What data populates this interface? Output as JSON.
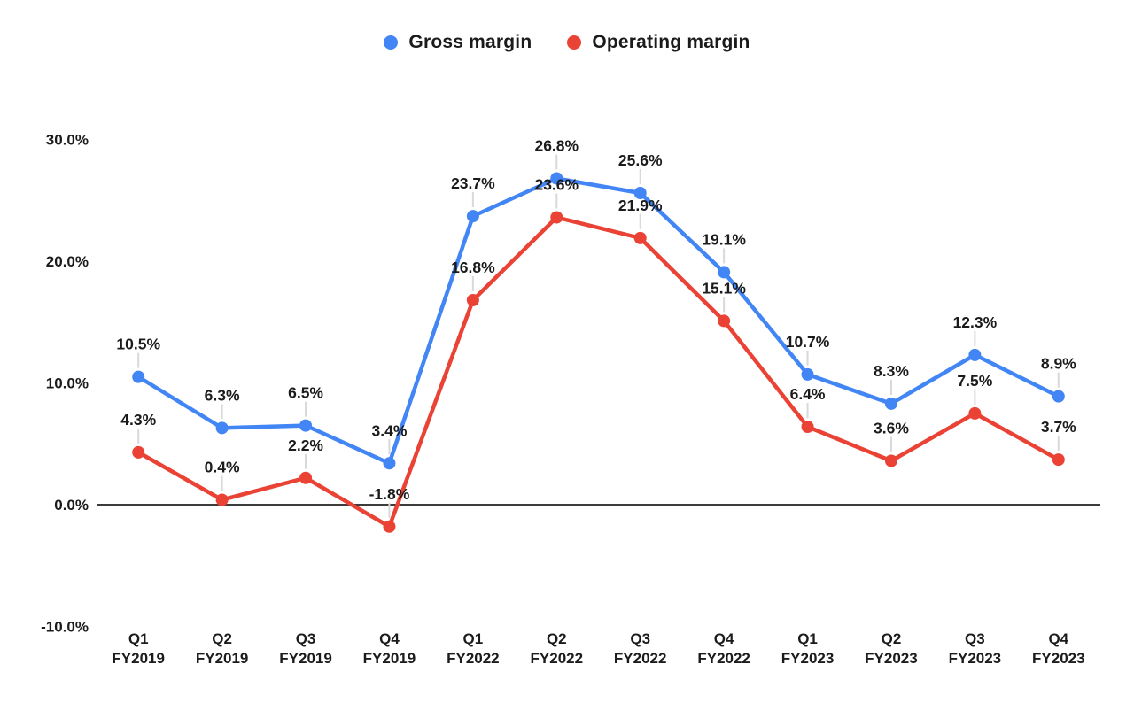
{
  "page": {
    "background_color": "#ffffff"
  },
  "legend": {
    "position": "top-center",
    "items": [
      {
        "label": "Gross margin",
        "color": "#4285F4",
        "swatch": "circle"
      },
      {
        "label": "Operating margin",
        "color": "#EA4335",
        "swatch": "circle"
      }
    ]
  },
  "chart_data": {
    "type": "line",
    "title": "",
    "legend_position": "top",
    "grid": false,
    "baseline_at_zero": true,
    "point_markers": true,
    "data_labels_visible": true,
    "categories": [
      "Q1 FY2019",
      "Q2 FY2019",
      "Q3 FY2019",
      "Q4 FY2019",
      "Q1 FY2022",
      "Q2 FY2022",
      "Q3 FY2022",
      "Q4 FY2022",
      "Q1 FY2023",
      "Q2 FY2023",
      "Q3 FY2023",
      "Q4 FY2023"
    ],
    "category_lines": [
      [
        "Q1",
        "FY2019"
      ],
      [
        "Q2",
        "FY2019"
      ],
      [
        "Q3",
        "FY2019"
      ],
      [
        "Q4",
        "FY2019"
      ],
      [
        "Q1",
        "FY2022"
      ],
      [
        "Q2",
        "FY2022"
      ],
      [
        "Q3",
        "FY2022"
      ],
      [
        "Q4",
        "FY2022"
      ],
      [
        "Q1",
        "FY2023"
      ],
      [
        "Q2",
        "FY2023"
      ],
      [
        "Q3",
        "FY2023"
      ],
      [
        "Q4",
        "FY2023"
      ]
    ],
    "series": [
      {
        "name": "Gross margin",
        "color": "#4285F4",
        "values": [
          10.5,
          6.3,
          6.5,
          3.4,
          23.7,
          26.8,
          25.6,
          19.1,
          10.7,
          8.3,
          12.3,
          8.9
        ],
        "labels": [
          "10.5%",
          "6.3%",
          "6.5%",
          "3.4%",
          "23.7%",
          "26.8%",
          "25.6%",
          "19.1%",
          "10.7%",
          "8.3%",
          "12.3%",
          "8.9%"
        ]
      },
      {
        "name": "Operating margin",
        "color": "#EA4335",
        "values": [
          4.3,
          0.4,
          2.2,
          -1.8,
          16.8,
          23.6,
          21.9,
          15.1,
          6.4,
          3.6,
          7.5,
          3.7
        ],
        "labels": [
          "4.3%",
          "0.4%",
          "2.2%",
          "-1.8%",
          "16.8%",
          "23.6%",
          "21.9%",
          "15.1%",
          "6.4%",
          "3.6%",
          "7.5%",
          "3.7%"
        ]
      }
    ],
    "y_axis": {
      "min": -10,
      "max": 30,
      "tick_step": 10,
      "tick_values": [
        30,
        20,
        10,
        0,
        -10
      ],
      "ticks": [
        "30.0%",
        "20.0%",
        "10.0%",
        "0.0%",
        "-10.0%"
      ],
      "unit": "%"
    },
    "style": {
      "axis_color": "#3c3c3c",
      "text_color": "#1b1b1b",
      "leader_line_color": "#d9d9d9",
      "line_width": 4.5,
      "point_radius": 7
    }
  }
}
